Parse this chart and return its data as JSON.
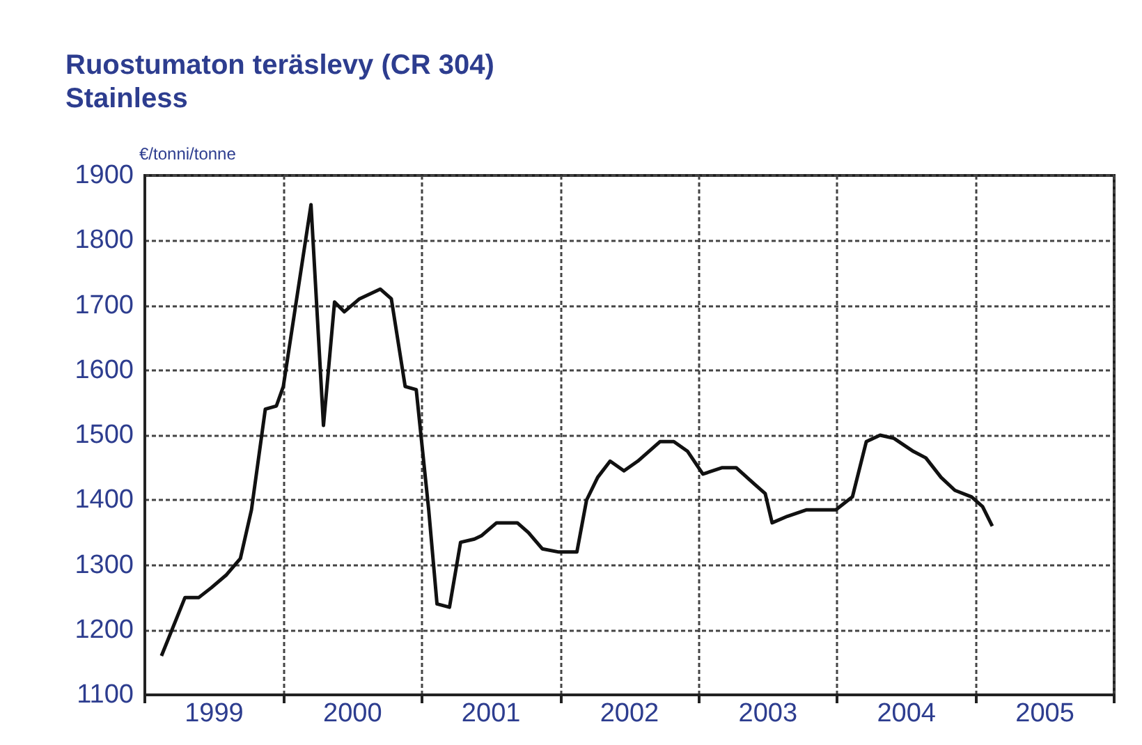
{
  "chart_data": {
    "type": "line",
    "title": "Ruostumaton teräslevy (CR 304)",
    "subtitle": "Stainless",
    "ylabel": "€/tonni/tonne",
    "x": [
      1999.12,
      1999.29,
      1999.39,
      1999.48,
      1999.59,
      1999.69,
      1999.77,
      1999.87,
      1999.95,
      2000.0,
      2000.2,
      2000.29,
      2000.37,
      2000.44,
      2000.55,
      2000.7,
      2000.78,
      2000.88,
      2000.96,
      2001.05,
      2001.11,
      2001.2,
      2001.28,
      2001.38,
      2001.43,
      2001.54,
      2001.69,
      2001.77,
      2001.87,
      2001.99,
      2002.12,
      2002.19,
      2002.27,
      2002.36,
      2002.46,
      2002.56,
      2002.72,
      2002.82,
      2002.92,
      2003.03,
      2003.17,
      2003.27,
      2003.4,
      2003.48,
      2003.53,
      2003.64,
      2003.78,
      2003.99,
      2004.11,
      2004.21,
      2004.31,
      2004.41,
      2004.55,
      2004.64,
      2004.75,
      2004.85,
      2004.97,
      2005.05,
      2005.12
    ],
    "series": [
      {
        "color": "#111111",
        "values": [
          1160,
          1250,
          1250,
          1265,
          1285,
          1310,
          1385,
          1540,
          1545,
          1575,
          1855,
          1515,
          1705,
          1690,
          1710,
          1725,
          1710,
          1575,
          1570,
          1385,
          1240,
          1235,
          1335,
          1340,
          1345,
          1365,
          1365,
          1350,
          1325,
          1320,
          1320,
          1400,
          1435,
          1460,
          1445,
          1460,
          1490,
          1490,
          1475,
          1440,
          1450,
          1450,
          1425,
          1410,
          1365,
          1375,
          1385,
          1385,
          1405,
          1490,
          1500,
          1495,
          1475,
          1465,
          1435,
          1415,
          1405,
          1390,
          1360
        ]
      }
    ],
    "xlim": [
      1999,
      2006
    ],
    "xticks": [
      {
        "value": 1999,
        "label": null
      },
      {
        "value": 1999.5,
        "label": "1999"
      },
      {
        "value": 2000,
        "label": null
      },
      {
        "value": 2000.5,
        "label": "2000"
      },
      {
        "value": 2001,
        "label": null
      },
      {
        "value": 2001.5,
        "label": "2001"
      },
      {
        "value": 2002,
        "label": null
      },
      {
        "value": 2002.5,
        "label": "2002"
      },
      {
        "value": 2003,
        "label": null
      },
      {
        "value": 2003.5,
        "label": "2003"
      },
      {
        "value": 2004,
        "label": null
      },
      {
        "value": 2004.5,
        "label": "2004"
      },
      {
        "value": 2005,
        "label": null
      },
      {
        "value": 2005.5,
        "label": "2005"
      },
      {
        "value": 2006,
        "label": null
      }
    ],
    "ylim": [
      1100,
      1900
    ],
    "yticks": [
      1100,
      1200,
      1300,
      1400,
      1500,
      1600,
      1700,
      1800,
      1900
    ],
    "grid": true,
    "marker": "none",
    "line_style": "solid"
  }
}
